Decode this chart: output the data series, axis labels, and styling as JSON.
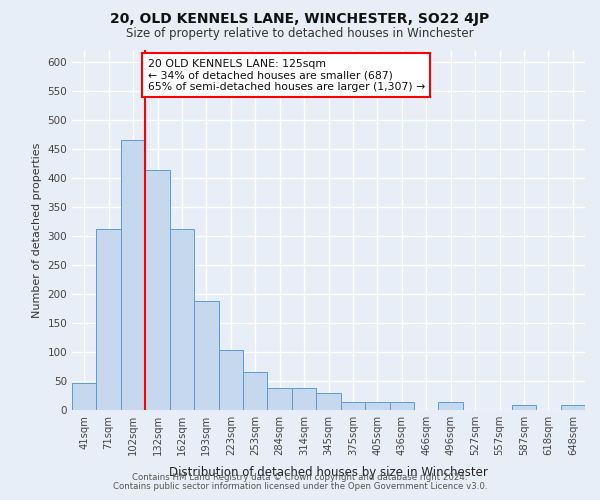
{
  "title": "20, OLD KENNELS LANE, WINCHESTER, SO22 4JP",
  "subtitle": "Size of property relative to detached houses in Winchester",
  "xlabel": "Distribution of detached houses by size in Winchester",
  "ylabel": "Number of detached properties",
  "bar_color": "#c5d8ed",
  "bar_edge_color": "#5b9bd5",
  "background_color": "#e8eef7",
  "grid_color": "#ffffff",
  "categories": [
    "41sqm",
    "71sqm",
    "102sqm",
    "132sqm",
    "162sqm",
    "193sqm",
    "223sqm",
    "253sqm",
    "284sqm",
    "314sqm",
    "345sqm",
    "375sqm",
    "405sqm",
    "436sqm",
    "466sqm",
    "496sqm",
    "527sqm",
    "557sqm",
    "587sqm",
    "618sqm",
    "648sqm"
  ],
  "values": [
    47,
    311,
    465,
    413,
    312,
    187,
    104,
    65,
    38,
    38,
    30,
    13,
    13,
    13,
    0,
    13,
    0,
    0,
    8,
    0,
    8
  ],
  "red_line_x": 2.5,
  "annotation_text": "20 OLD KENNELS LANE: 125sqm\n← 34% of detached houses are smaller (687)\n65% of semi-detached houses are larger (1,307) →",
  "annotation_box_color": "white",
  "annotation_box_edge_color": "red",
  "ylim": [
    0,
    620
  ],
  "yticks": [
    0,
    50,
    100,
    150,
    200,
    250,
    300,
    350,
    400,
    450,
    500,
    550,
    600
  ],
  "footnote1": "Contains HM Land Registry data © Crown copyright and database right 2024.",
  "footnote2": "Contains public sector information licensed under the Open Government Licence v3.0."
}
